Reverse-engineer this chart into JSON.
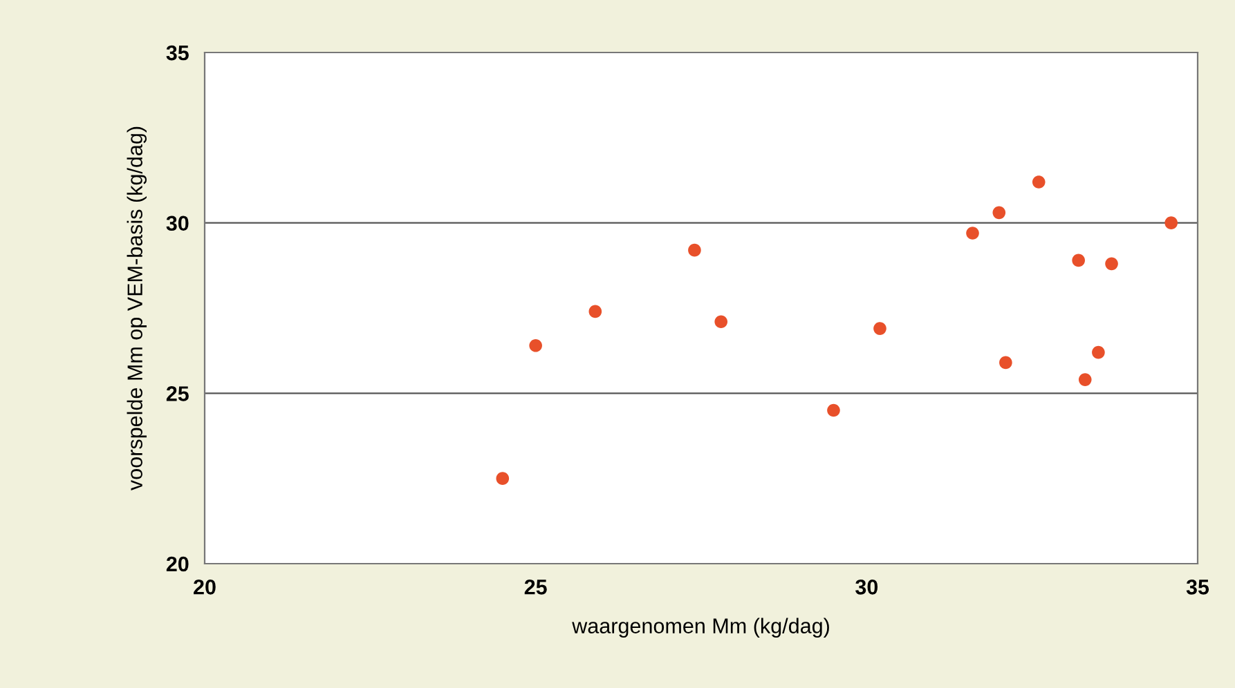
{
  "chart_data": {
    "type": "scatter",
    "xlabel": "waargenomen Mm (kg/dag)",
    "ylabel": "voorspelde Mm op VEM-basis (kg/dag)",
    "x": [
      24.5,
      25.0,
      25.9,
      27.4,
      27.8,
      29.5,
      30.2,
      31.6,
      32.0,
      32.1,
      32.6,
      33.2,
      33.3,
      33.5,
      33.7,
      34.6
    ],
    "series": [
      {
        "color": "#e8502a",
        "values": [
          22.5,
          26.4,
          27.4,
          29.2,
          27.1,
          24.5,
          26.9,
          29.7,
          30.3,
          25.9,
          31.2,
          28.9,
          25.4,
          26.2,
          28.8,
          30.0
        ]
      }
    ],
    "xlim": [
      20,
      35
    ],
    "ylim": [
      20,
      35
    ],
    "xticks": [
      20,
      25,
      30,
      35
    ],
    "yticks": [
      20,
      25,
      30,
      35
    ],
    "grid": "y",
    "marker": "circle"
  }
}
